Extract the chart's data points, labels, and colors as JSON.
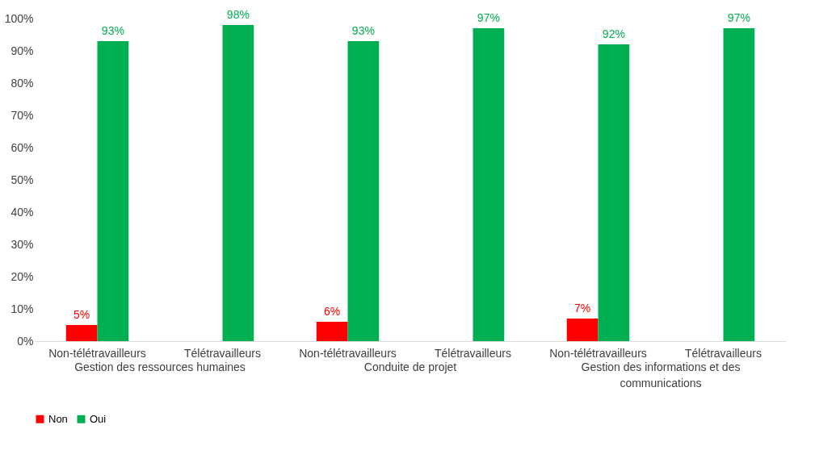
{
  "chart_data": {
    "type": "bar",
    "categories": [
      "Non-télétravailleurs",
      "Télétravailleurs",
      "Non-télétravailleurs",
      "Télétravailleurs",
      "Non-télétravailleurs",
      "Télétravailleurs"
    ],
    "annotations": [
      "Gestion des ressources humaines",
      "Conduite de projet",
      "Gestion des informations et des communications"
    ],
    "series": [
      {
        "name": "Non",
        "color": "#ff0000",
        "values": [
          5,
          null,
          6,
          null,
          7,
          null
        ],
        "value_labels": [
          "5%",
          null,
          "6%",
          null,
          "7%",
          null
        ]
      },
      {
        "name": "Oui",
        "color": "#00b050",
        "values": [
          93,
          98,
          93,
          97,
          92,
          97
        ],
        "value_labels": [
          "93%",
          "98%",
          "93%",
          "97%",
          "92%",
          "97%"
        ]
      }
    ],
    "ylim": [
      0,
      100
    ],
    "yticks": [
      {
        "value": 0,
        "label": "0%"
      },
      {
        "value": 10,
        "label": "10%"
      },
      {
        "value": 20,
        "label": "20%"
      },
      {
        "value": 30,
        "label": "30%"
      },
      {
        "value": 40,
        "label": "40%"
      },
      {
        "value": 50,
        "label": "50%"
      },
      {
        "value": 60,
        "label": "60%"
      },
      {
        "value": 70,
        "label": "70%"
      },
      {
        "value": 80,
        "label": "80%"
      },
      {
        "value": 90,
        "label": "90%"
      },
      {
        "value": 100,
        "label": "100%"
      }
    ],
    "grid": false,
    "legend": "bottom"
  }
}
